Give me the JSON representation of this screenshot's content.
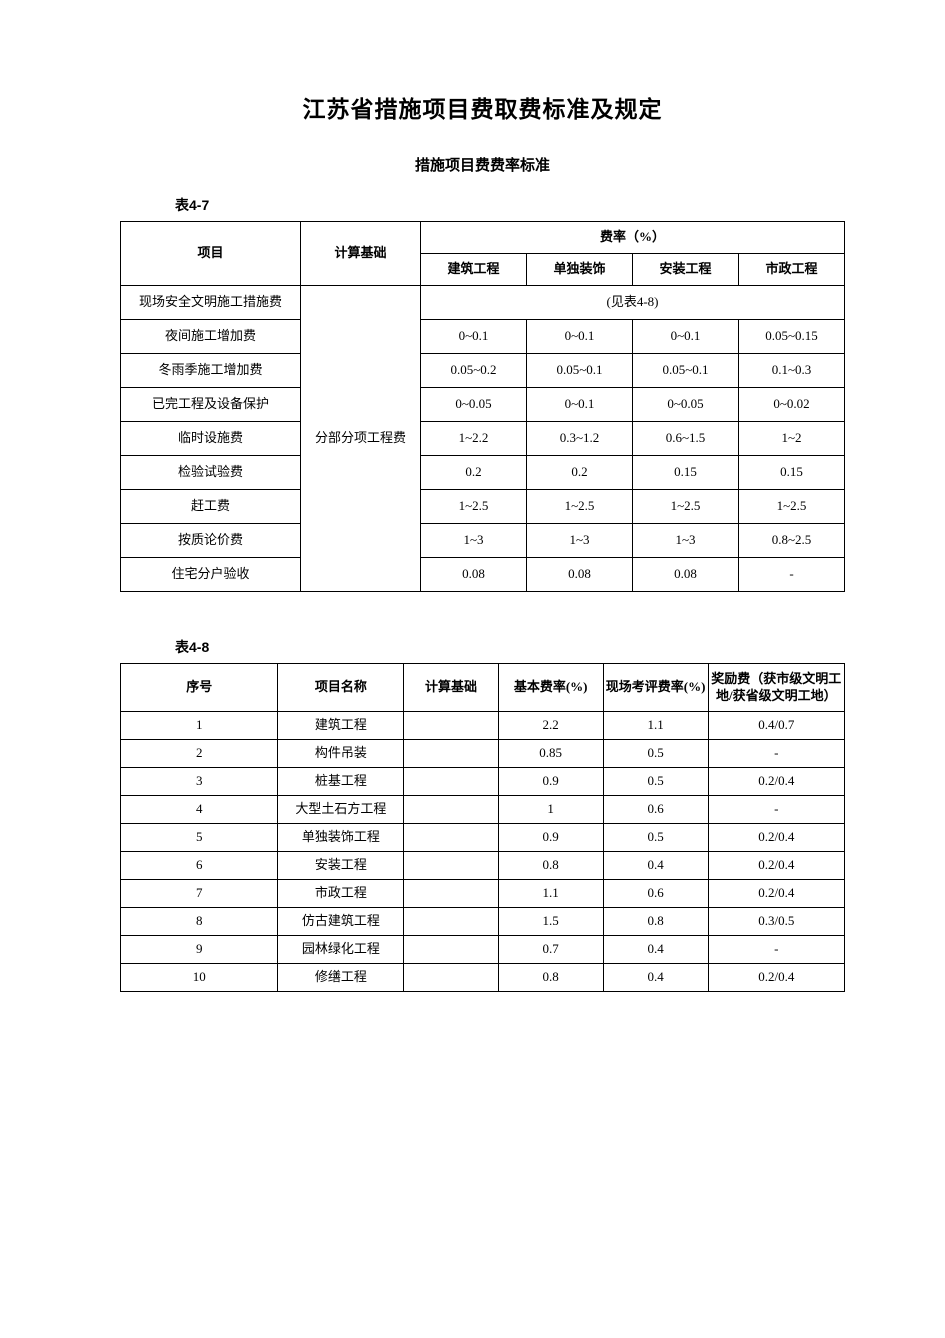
{
  "page": {
    "main_title": "江苏省措施项目费取费标准及规定",
    "sub_title": "措施项目费费率标准",
    "colors": {
      "text": "#000000",
      "background": "#ffffff",
      "border": "#000000"
    }
  },
  "table47": {
    "label": "表4-7",
    "headers": {
      "project": "项目",
      "basis": "计算基础",
      "rate_group": "费率（%）",
      "c1": "建筑工程",
      "c2": "单独装饰",
      "c3": "安装工程",
      "c4": "市政工程"
    },
    "basis_value": "分部分项工程费",
    "ref_note": "(见表4-8)",
    "rows": [
      {
        "name": "现场安全文明施工措施费",
        "v": [
          "",
          "",
          "",
          ""
        ]
      },
      {
        "name": "夜间施工增加费",
        "v": [
          "0~0.1",
          "0~0.1",
          "0~0.1",
          "0.05~0.15"
        ]
      },
      {
        "name": "冬雨季施工增加费",
        "v": [
          "0.05~0.2",
          "0.05~0.1",
          "0.05~0.1",
          "0.1~0.3"
        ]
      },
      {
        "name": "已完工程及设备保护",
        "v": [
          "0~0.05",
          "0~0.1",
          "0~0.05",
          "0~0.02"
        ]
      },
      {
        "name": "临时设施费",
        "v": [
          "1~2.2",
          "0.3~1.2",
          "0.6~1.5",
          "1~2"
        ]
      },
      {
        "name": "检验试验费",
        "v": [
          "0.2",
          "0.2",
          "0.15",
          "0.15"
        ]
      },
      {
        "name": "赶工费",
        "v": [
          "1~2.5",
          "1~2.5",
          "1~2.5",
          "1~2.5"
        ]
      },
      {
        "name": "按质论价费",
        "v": [
          "1~3",
          "1~3",
          "1~3",
          "0.8~2.5"
        ]
      },
      {
        "name": "住宅分户验收",
        "v": [
          "0.08",
          "0.08",
          "0.08",
          "-"
        ]
      }
    ]
  },
  "table48": {
    "label": "表4-8",
    "headers": {
      "seq": "序号",
      "name": "项目名称",
      "basis": "计算基础",
      "base_rate": "基本费率(%)",
      "eval_rate": "现场考评费率(%)",
      "bonus": "奖励费（获市级文明工地/获省级文明工地）"
    },
    "rows": [
      {
        "seq": "1",
        "name": "建筑工程",
        "basis": "",
        "base": "2.2",
        "eval": "1.1",
        "bonus": "0.4/0.7"
      },
      {
        "seq": "2",
        "name": "构件吊装",
        "basis": "",
        "base": "0.85",
        "eval": "0.5",
        "bonus": "-"
      },
      {
        "seq": "3",
        "name": "桩基工程",
        "basis": "",
        "base": "0.9",
        "eval": "0.5",
        "bonus": "0.2/0.4"
      },
      {
        "seq": "4",
        "name": "大型土石方工程",
        "basis": "",
        "base": "1",
        "eval": "0.6",
        "bonus": "-"
      },
      {
        "seq": "5",
        "name": "单独装饰工程",
        "basis": "",
        "base": "0.9",
        "eval": "0.5",
        "bonus": "0.2/0.4"
      },
      {
        "seq": "6",
        "name": "安装工程",
        "basis": "",
        "base": "0.8",
        "eval": "0.4",
        "bonus": "0.2/0.4"
      },
      {
        "seq": "7",
        "name": "市政工程",
        "basis": "",
        "base": "1.1",
        "eval": "0.6",
        "bonus": "0.2/0.4"
      },
      {
        "seq": "8",
        "name": "仿古建筑工程",
        "basis": "",
        "base": "1.5",
        "eval": "0.8",
        "bonus": "0.3/0.5"
      },
      {
        "seq": "9",
        "name": "园林绿化工程",
        "basis": "",
        "base": "0.7",
        "eval": "0.4",
        "bonus": "-"
      },
      {
        "seq": "10",
        "name": "修缮工程",
        "basis": "",
        "base": "0.8",
        "eval": "0.4",
        "bonus": "0.2/0.4"
      }
    ]
  }
}
